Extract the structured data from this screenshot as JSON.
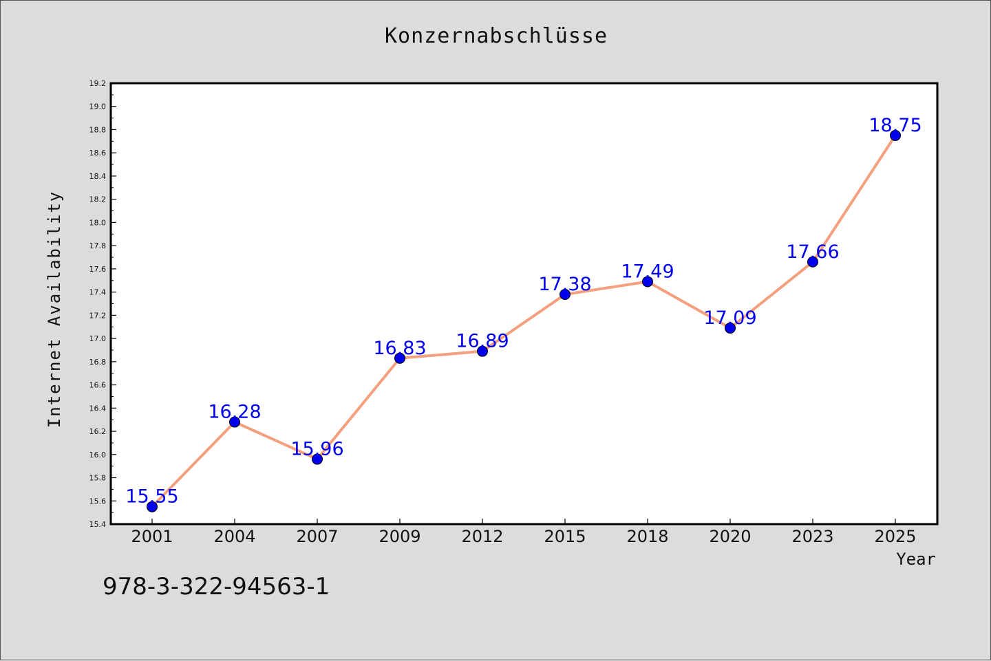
{
  "page": {
    "caption": "978-3-322-94563-1"
  },
  "chart_data": {
    "type": "line",
    "title": "Konzernabschlüsse",
    "xlabel": "Year",
    "ylabel": "Internet Availability",
    "categories": [
      "2001",
      "2004",
      "2007",
      "2009",
      "2012",
      "2015",
      "2018",
      "2020",
      "2023",
      "2025"
    ],
    "series": [
      {
        "values": [
          15.55,
          16.28,
          15.96,
          16.83,
          16.89,
          17.38,
          17.49,
          17.09,
          17.66,
          18.75
        ],
        "labels": [
          "15.55",
          "16.28",
          "15.96",
          "16.83",
          "16.89",
          "17.38",
          "17.49",
          "17.09",
          "17.66",
          "18.75"
        ]
      }
    ],
    "ylim": [
      15.4,
      19.2
    ],
    "yticks": [
      "15.4",
      "15.6",
      "15.8",
      "16.0",
      "16.2",
      "16.4",
      "16.6",
      "16.8",
      "17.0",
      "17.2",
      "17.4",
      "17.6",
      "17.8",
      "18.0",
      "18.2",
      "18.4",
      "18.6",
      "18.8",
      "19.0",
      "19.2"
    ],
    "grid": false,
    "line_color": "#f4a07e",
    "marker_color": "#0000ee",
    "label_color": "#0000ee",
    "plot_background": "#ffffff"
  }
}
